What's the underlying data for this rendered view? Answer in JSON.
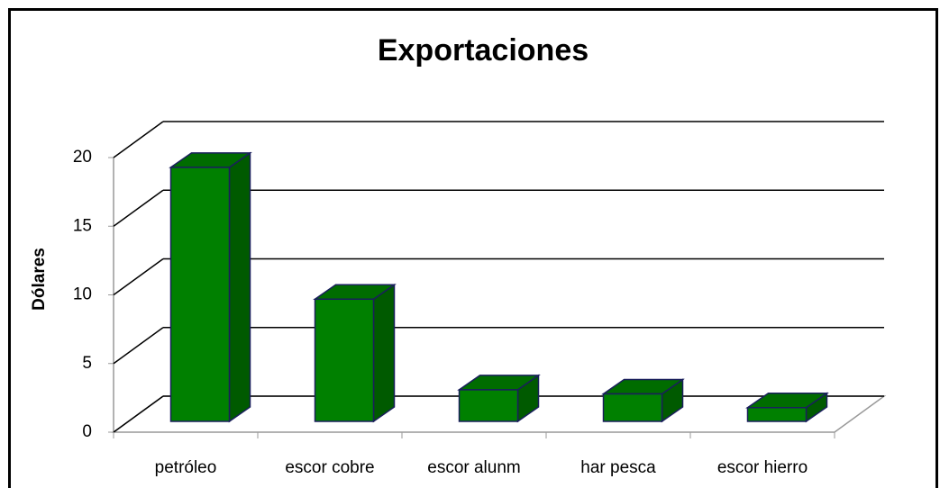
{
  "chart_data": {
    "type": "bar3d",
    "title": "Exportaciones",
    "y_label": "Dólares",
    "categories": [
      "petróleo",
      "escor cobre",
      "escor alunm",
      "har pesca",
      "escor hierro"
    ],
    "values": [
      18.5,
      8.9,
      2.3,
      2,
      1
    ],
    "color": "#008000",
    "ylim": [
      0,
      20
    ],
    "yticks": [
      0,
      5,
      10,
      15,
      20
    ],
    "grid": true
  }
}
